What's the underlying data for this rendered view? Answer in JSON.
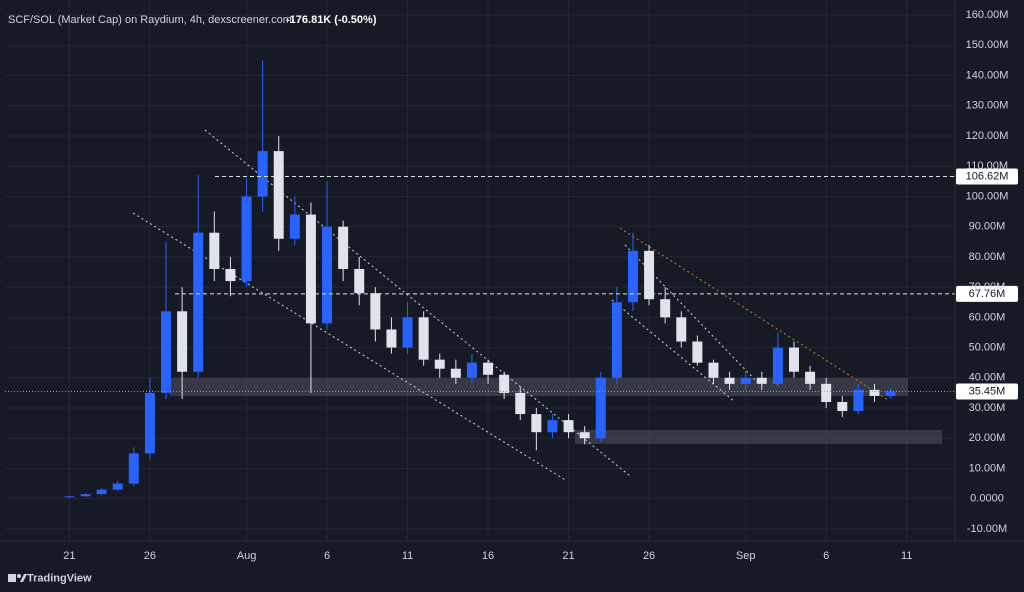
{
  "chart_data": {
    "type": "candlestick",
    "title": "SCF/SOL (Market Cap) on Raydium, 4h, dexscreener.com",
    "change": "-176.81K (-0.50%)",
    "footer": "TradingView",
    "up_color": "#2962ff",
    "down_color": "#e0e3eb",
    "grid": true,
    "x": [
      0,
      1,
      2,
      3,
      4,
      5,
      6,
      7,
      8,
      9,
      10,
      11,
      12,
      13,
      14,
      15,
      16,
      17,
      18,
      19,
      20,
      21,
      22,
      23,
      24,
      25,
      26,
      27,
      28,
      29,
      30,
      31,
      32,
      33,
      34,
      35,
      36,
      37,
      38,
      39,
      40,
      41,
      42,
      43,
      44,
      45,
      46,
      47,
      48,
      49,
      50,
      51
    ],
    "open": [
      0.5,
      0.8,
      1.5,
      3,
      5,
      15,
      35,
      62,
      42,
      88,
      76,
      72,
      100,
      115,
      86,
      94,
      58,
      90,
      76,
      68,
      56,
      50,
      60,
      46,
      43,
      40,
      45,
      41,
      35,
      28,
      22,
      26,
      22,
      20,
      40,
      65,
      82,
      66,
      60,
      52,
      45,
      40,
      38,
      40,
      38,
      50,
      42,
      38,
      32,
      29,
      36,
      34
    ],
    "high": [
      1,
      1.8,
      3.5,
      6,
      17,
      40,
      85,
      70,
      107,
      95,
      80,
      106,
      145,
      120,
      100,
      98,
      105,
      92,
      80,
      70,
      60,
      65,
      62,
      48,
      46,
      48,
      46,
      42,
      37,
      30,
      28,
      28,
      24,
      42,
      70,
      88,
      84,
      70,
      62,
      54,
      46,
      42,
      42,
      42,
      55,
      52,
      44,
      40,
      34,
      38,
      38,
      36.5
    ],
    "low": [
      0.3,
      0.6,
      1.2,
      2.5,
      4,
      13,
      33,
      33,
      40,
      72,
      67,
      70,
      95,
      82,
      84,
      35,
      56,
      72,
      64,
      52,
      48,
      48,
      44,
      40,
      38,
      38,
      38,
      33,
      26,
      16,
      20,
      20,
      18,
      19,
      38,
      62,
      64,
      58,
      50,
      44,
      38,
      36,
      36,
      36,
      37,
      40,
      36,
      30,
      27,
      28,
      32,
      33
    ],
    "close": [
      0.8,
      1.5,
      3,
      5,
      15,
      35,
      62,
      42,
      88,
      76,
      72,
      100,
      115,
      86,
      94,
      58,
      90,
      76,
      68,
      56,
      50,
      60,
      46,
      43,
      40,
      45,
      41,
      35,
      28,
      22,
      26,
      22,
      20,
      40,
      65,
      82,
      66,
      60,
      52,
      45,
      40,
      38,
      40,
      38,
      50,
      42,
      38,
      32,
      29,
      36,
      34,
      35.45
    ],
    "xlim": [
      -4,
      55
    ],
    "ylim": [
      -14,
      165
    ],
    "xticks": [
      {
        "value": 0,
        "label": "21"
      },
      {
        "value": 5,
        "label": "26"
      },
      {
        "value": 11,
        "label": "Aug"
      },
      {
        "value": 16,
        "label": "6"
      },
      {
        "value": 21,
        "label": "11"
      },
      {
        "value": 26,
        "label": "16"
      },
      {
        "value": 31,
        "label": "21"
      },
      {
        "value": 36,
        "label": "26"
      },
      {
        "value": 42,
        "label": "Sep"
      },
      {
        "value": 47,
        "label": "6"
      },
      {
        "value": 52,
        "label": "11"
      }
    ],
    "yticks": [
      {
        "value": 160,
        "label": "160.00M"
      },
      {
        "value": 150,
        "label": "150.00M"
      },
      {
        "value": 140,
        "label": "140.00M"
      },
      {
        "value": 130,
        "label": "130.00M"
      },
      {
        "value": 120,
        "label": "120.00M"
      },
      {
        "value": 110,
        "label": "110.00M"
      },
      {
        "value": 100,
        "label": "100.00M"
      },
      {
        "value": 90,
        "label": "90.00M"
      },
      {
        "value": 80,
        "label": "80.00M"
      },
      {
        "value": 70,
        "label": "70.00M"
      },
      {
        "value": 60,
        "label": "60.00M"
      },
      {
        "value": 50,
        "label": "50.00M"
      },
      {
        "value": 40,
        "label": "40.00M"
      },
      {
        "value": 30,
        "label": "30.00M"
      },
      {
        "value": 20,
        "label": "20.00M"
      },
      {
        "value": 10,
        "label": "10.00M"
      },
      {
        "value": 0,
        "label": "0.0000"
      },
      {
        "value": -10,
        "label": "-10.00M"
      }
    ],
    "price_lines": [
      {
        "value": 106.62,
        "label": "106.62M"
      },
      {
        "value": 67.76,
        "label": "67.76M"
      }
    ],
    "last_price": {
      "value": 35.45,
      "label": "35.45M"
    }
  }
}
